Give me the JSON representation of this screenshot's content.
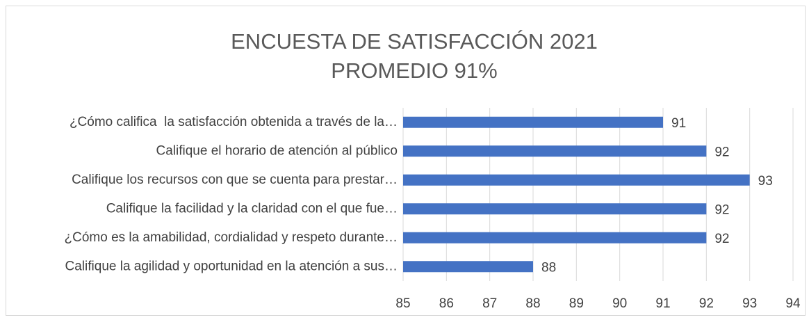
{
  "chart_data": {
    "type": "barh",
    "title": "ENCUESTA DE SATISFACCIÓN 2021",
    "subtitle": "PROMEDIO 91%",
    "categories": [
      "¿Cómo califica  la satisfacción obtenida a través de la…",
      "Califique el horario de atención al público",
      "Califique los recursos con que se cuenta para prestar…",
      "Califique la facilidad y la claridad con el que fue…",
      "¿Cómo es la amabilidad, cordialidad y respeto durante…",
      "Califique la agilidad y oportunidad en la atención a sus…"
    ],
    "values": [
      91,
      92,
      93,
      92,
      92,
      88
    ],
    "color": "#4472c4",
    "xlim": [
      85,
      94
    ],
    "xticks": [
      85,
      86,
      87,
      88,
      89,
      90,
      91,
      92,
      93,
      94
    ],
    "grid": true
  }
}
